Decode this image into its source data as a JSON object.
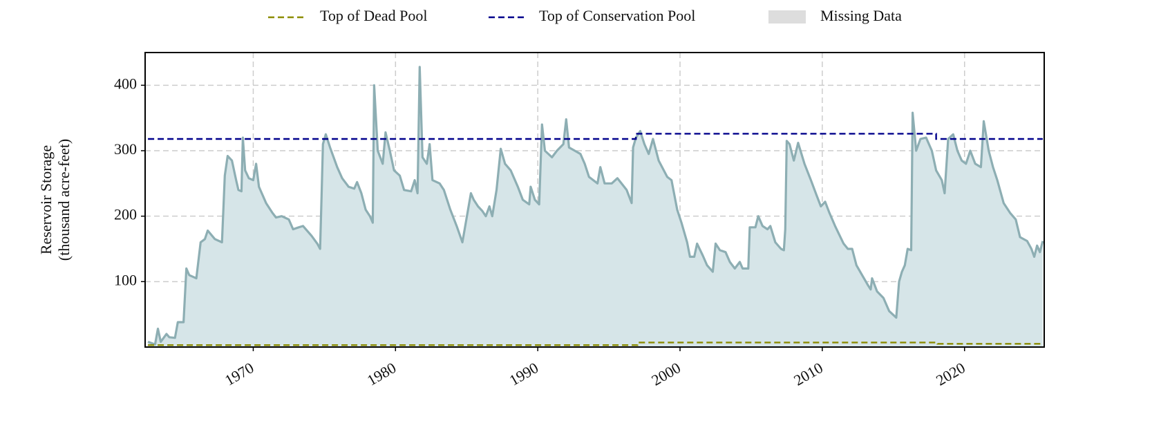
{
  "chart_data": {
    "type": "line",
    "y_label": "Reservoir Storage\n(thousand acre-feet)",
    "color": "#8daeb3",
    "fill_color": "#d6e5e8",
    "xlim": [
      1962.4,
      2025.6
    ],
    "xticks": [
      1970,
      1980,
      1990,
      2000,
      2010,
      2020
    ],
    "ylim": [
      0,
      450
    ],
    "yticks": [
      100,
      200,
      300,
      400
    ],
    "grid": true,
    "x": [
      1962.6,
      1963.1,
      1963.3,
      1963.5,
      1963.9,
      1964.1,
      1964.5,
      1964.7,
      1965.1,
      1965.3,
      1965.5,
      1966.0,
      1966.3,
      1966.6,
      1966.8,
      1967.3,
      1967.8,
      1968.0,
      1968.2,
      1968.5,
      1968.8,
      1968.96,
      1969.17,
      1969.27,
      1969.43,
      1969.69,
      1970.0,
      1970.2,
      1970.4,
      1970.9,
      1971.35,
      1971.6,
      1972.0,
      1972.5,
      1972.8,
      1973.2,
      1973.5,
      1974.1,
      1974.5,
      1974.7,
      1974.8,
      1974.9,
      1975.1,
      1975.4,
      1975.9,
      1976.25,
      1976.7,
      1977.1,
      1977.3,
      1977.6,
      1977.9,
      1978.2,
      1978.4,
      1978.5,
      1978.75,
      1979.1,
      1979.3,
      1979.6,
      1979.9,
      1980.3,
      1980.6,
      1981.1,
      1981.35,
      1981.55,
      1981.7,
      1981.9,
      1982.2,
      1982.4,
      1982.6,
      1983.1,
      1983.4,
      1983.85,
      1984.3,
      1984.7,
      1984.9,
      1985.1,
      1985.3,
      1985.5,
      1985.8,
      1986.1,
      1986.35,
      1986.6,
      1986.8,
      1987.1,
      1987.4,
      1987.7,
      1988.1,
      1988.6,
      1988.95,
      1989.4,
      1989.5,
      1989.8,
      1990.1,
      1990.3,
      1990.5,
      1991.0,
      1991.35,
      1991.8,
      1992.0,
      1992.2,
      1992.6,
      1993.0,
      1993.3,
      1993.6,
      1994.2,
      1994.4,
      1994.7,
      1995.2,
      1995.6,
      1996.25,
      1996.6,
      1996.7,
      1996.9,
      1997.2,
      1997.5,
      1997.8,
      1998.1,
      1998.5,
      1999.1,
      1999.4,
      1999.8,
      2000.1,
      2000.5,
      2000.7,
      2001.0,
      2001.2,
      2001.6,
      2001.9,
      2002.3,
      2002.5,
      2002.8,
      2003.2,
      2003.5,
      2003.85,
      2004.2,
      2004.4,
      2004.8,
      2004.9,
      2005.3,
      2005.5,
      2005.8,
      2006.15,
      2006.35,
      2006.7,
      2007.1,
      2007.3,
      2007.4,
      2007.5,
      2007.7,
      2008.0,
      2008.3,
      2008.75,
      2009.2,
      2009.6,
      2009.9,
      2010.2,
      2010.5,
      2010.9,
      2011.5,
      2011.8,
      2012.1,
      2012.4,
      2012.8,
      2013.2,
      2013.4,
      2013.5,
      2013.85,
      2014.3,
      2014.7,
      2015.2,
      2015.4,
      2015.6,
      2015.8,
      2016.0,
      2016.25,
      2016.35,
      2016.6,
      2016.9,
      2017.3,
      2017.7,
      2018.0,
      2018.4,
      2018.6,
      2018.85,
      2019.2,
      2019.5,
      2019.8,
      2020.1,
      2020.4,
      2020.75,
      2021.15,
      2021.35,
      2021.7,
      2022.0,
      2022.3,
      2022.75,
      2023.2,
      2023.6,
      2023.9,
      2024.4,
      2024.7,
      2024.9,
      2025.1,
      2025.3,
      2025.5
    ],
    "values": [
      8,
      4,
      28,
      8,
      20,
      15,
      14,
      38,
      38,
      120,
      110,
      105,
      160,
      165,
      178,
      165,
      160,
      262,
      292,
      285,
      255,
      240,
      238,
      320,
      270,
      258,
      255,
      280,
      245,
      220,
      205,
      198,
      200,
      195,
      180,
      183,
      185,
      170,
      158,
      150,
      230,
      310,
      325,
      305,
      275,
      258,
      245,
      242,
      252,
      235,
      210,
      200,
      190,
      400,
      300,
      280,
      328,
      300,
      270,
      262,
      240,
      238,
      255,
      235,
      428,
      290,
      280,
      310,
      255,
      250,
      240,
      210,
      185,
      160,
      185,
      210,
      235,
      225,
      215,
      208,
      200,
      215,
      200,
      240,
      303,
      280,
      270,
      245,
      225,
      218,
      245,
      225,
      218,
      340,
      300,
      290,
      300,
      310,
      348,
      305,
      300,
      295,
      280,
      260,
      250,
      275,
      250,
      250,
      258,
      240,
      220,
      305,
      320,
      330,
      310,
      295,
      318,
      285,
      260,
      255,
      210,
      190,
      160,
      138,
      138,
      158,
      140,
      125,
      115,
      158,
      148,
      145,
      130,
      120,
      130,
      120,
      120,
      183,
      183,
      200,
      185,
      180,
      185,
      160,
      150,
      148,
      180,
      315,
      310,
      285,
      312,
      280,
      255,
      232,
      215,
      222,
      205,
      185,
      158,
      150,
      150,
      125,
      110,
      95,
      88,
      105,
      85,
      75,
      55,
      45,
      100,
      115,
      125,
      150,
      148,
      358,
      300,
      318,
      320,
      300,
      270,
      255,
      235,
      318,
      325,
      300,
      285,
      280,
      300,
      280,
      275,
      345,
      300,
      275,
      255,
      220,
      205,
      195,
      168,
      162,
      150,
      138,
      155,
      145,
      162
    ],
    "series": [
      {
        "name": "Top of Dead Pool",
        "color": "#8b8b00",
        "x": [
          1962.6,
          1997.0,
          1997.0,
          2018.1,
          2018.1,
          2025.5
        ],
        "values": [
          3,
          3,
          7,
          7,
          5,
          5
        ]
      },
      {
        "name": "Top of Conservation Pool",
        "color": "#00008b",
        "x": [
          1962.6,
          1996.9,
          1996.9,
          2018.0,
          2018.0,
          2025.5
        ],
        "values": [
          318,
          318,
          326,
          326,
          318,
          318
        ]
      }
    ],
    "missing_data": {
      "name": "Missing Data",
      "color": "#dddddd"
    }
  }
}
